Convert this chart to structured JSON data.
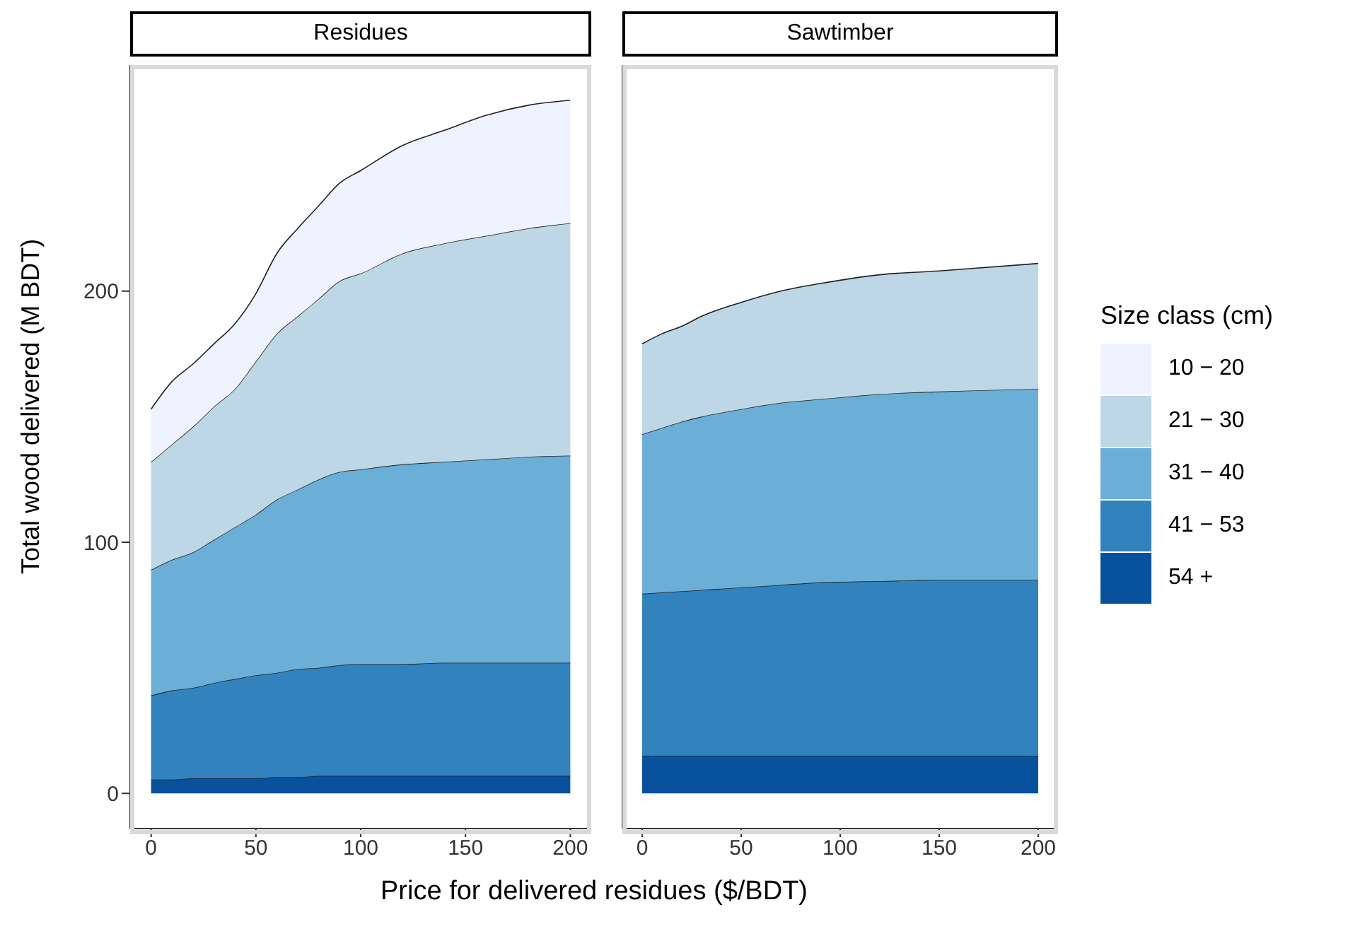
{
  "chart_data": [
    {
      "type": "area",
      "title": "Residues",
      "xlabel": "Price for delivered residues ($/BDT)",
      "ylabel": "Total wood delivered (M BDT)",
      "stacked": true,
      "x": [
        0,
        10,
        20,
        30,
        40,
        50,
        60,
        70,
        80,
        90,
        100,
        120,
        140,
        160,
        180,
        200
      ],
      "xlim": [
        -10,
        210
      ],
      "xticks": [
        0,
        50,
        100,
        150,
        200
      ],
      "ylim": [
        -14,
        290
      ],
      "yticks": [
        0,
        100,
        200
      ],
      "grid": false,
      "legend": "right",
      "legend_title": "Size class (cm)",
      "series": [
        {
          "name": "54 +",
          "color": "#08519c",
          "values": [
            5.5,
            5.5,
            6,
            6,
            6,
            6,
            6.5,
            6.5,
            7,
            7,
            7,
            7,
            7,
            7,
            7,
            7
          ]
        },
        {
          "name": "41 − 53",
          "color": "#3182bd",
          "values": [
            33.5,
            35.5,
            36,
            38,
            39.5,
            41,
            41.5,
            43,
            43,
            44,
            44.5,
            44.5,
            45,
            45,
            45,
            45
          ]
        },
        {
          "name": "31 − 40",
          "color": "#6baed6",
          "values": [
            50,
            52,
            54,
            57,
            60.5,
            64,
            69,
            71.5,
            75,
            77,
            77.5,
            79.5,
            80,
            81,
            82,
            82.5
          ]
        },
        {
          "name": "21 − 30",
          "color": "#bdd7e7",
          "values": [
            43,
            46,
            50,
            53,
            55,
            61,
            66,
            69,
            72,
            76,
            78,
            84,
            87,
            89,
            91,
            92.5
          ]
        },
        {
          "name": "10 − 20",
          "color": "#eff3ff",
          "values": [
            21,
            25,
            25,
            25,
            26,
            27,
            32,
            35,
            37,
            39,
            41,
            43,
            45,
            48,
            49,
            49
          ]
        }
      ]
    },
    {
      "type": "area",
      "title": "Sawtimber",
      "stacked": true,
      "x": [
        0,
        10,
        20,
        30,
        50,
        70,
        90,
        120,
        150,
        200
      ],
      "xlim": [
        -10,
        210
      ],
      "xticks": [
        0,
        50,
        100,
        150,
        200
      ],
      "ylim": [
        -14,
        290
      ],
      "yticks": [
        0,
        100,
        200
      ],
      "tick_labels": "x",
      "grid": false,
      "series": [
        {
          "color": "#08519c",
          "values": [
            15,
            15,
            15,
            15,
            15,
            15,
            15,
            15,
            15,
            15
          ]
        },
        {
          "color": "#3182bd",
          "values": [
            64.5,
            65,
            65.5,
            66,
            67,
            68,
            69,
            69.5,
            70,
            70
          ]
        },
        {
          "color": "#6baed6",
          "values": [
            63.5,
            65.5,
            67.5,
            69,
            71,
            72.5,
            73,
            74.5,
            75,
            76
          ]
        },
        {
          "color": "#bdd7e7",
          "values": [
            36,
            37.5,
            38,
            40,
            42.5,
            44.5,
            46,
            47.5,
            48,
            50
          ]
        }
      ]
    }
  ]
}
